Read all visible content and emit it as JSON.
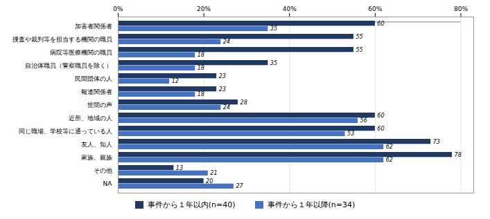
{
  "chart_data": {
    "type": "bar",
    "orientation": "horizontal",
    "categories": [
      "加害者関係者",
      "捜査や裁判等を担当する機関の職員",
      "病院等医療機関の職員",
      "自治体職員（警察職員を除く）",
      "民間団体の人",
      "報道関係者",
      "世間の声",
      "近所、地域の人",
      "同じ職場、学校等に通っている人",
      "友人、知人",
      "家族、親族",
      "その他",
      "NA"
    ],
    "series": [
      {
        "name": "事件から１年以内(n=40)",
        "color": "#1F3864",
        "values": [
          60,
          55,
          55,
          35,
          23,
          23,
          28,
          60,
          60,
          73,
          78,
          13,
          20
        ]
      },
      {
        "name": "事件から１年以降(n=34)",
        "color": "#4472C4",
        "values": [
          35,
          24,
          18,
          18,
          12,
          18,
          24,
          56,
          53,
          62,
          62,
          21,
          27
        ]
      }
    ],
    "reference_bar": {
      "category": "加害者関係者",
      "value": 80,
      "color": "#AAAAAA"
    },
    "xlim": [
      0,
      83
    ],
    "xticks": [
      {
        "value": 0,
        "label": "0%"
      },
      {
        "value": 20,
        "label": "20%"
      },
      {
        "value": 40,
        "label": "40%"
      },
      {
        "value": 60,
        "label": "60%"
      },
      {
        "value": 80,
        "label": "80%"
      }
    ],
    "grid": true,
    "legend": "bottom",
    "data_labels": true
  }
}
